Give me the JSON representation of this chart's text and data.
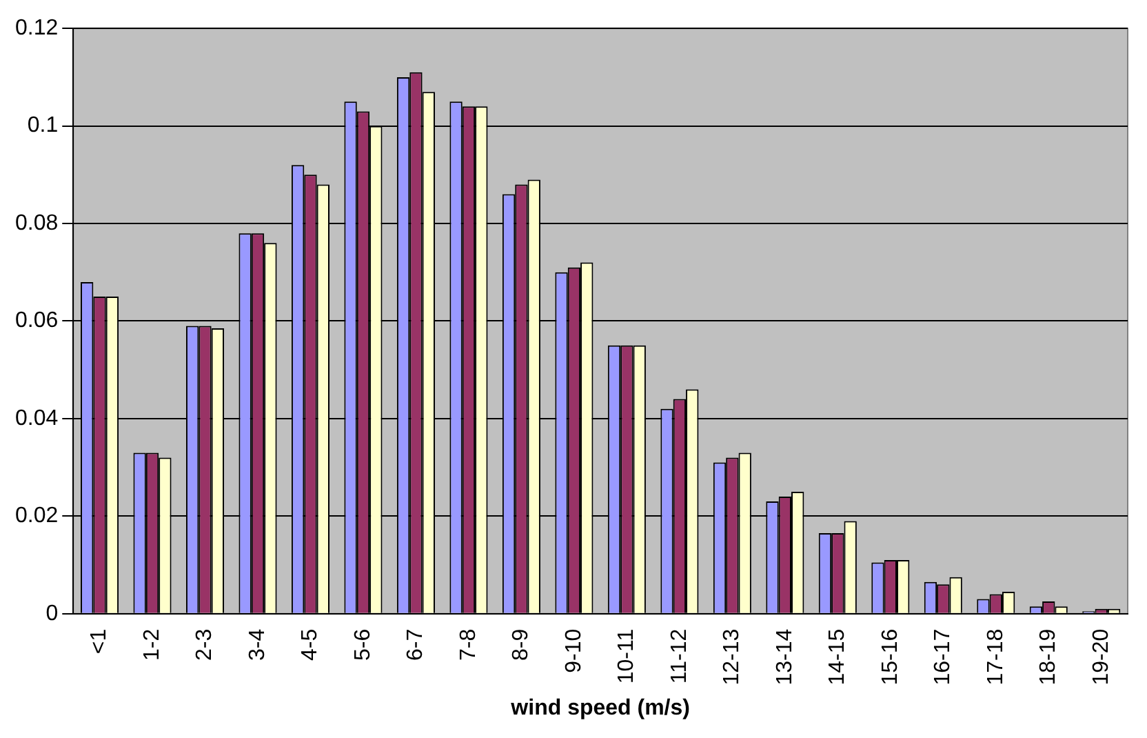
{
  "chart_data": {
    "type": "bar",
    "xlabel": "wind speed (m/s)",
    "categories": [
      "<1",
      "1-2",
      "2-3",
      "3-4",
      "4-5",
      "5-6",
      "6-7",
      "7-8",
      "8-9",
      "9-10",
      "10-11",
      "11-12",
      "12-13",
      "13-14",
      "14-15",
      "15-16",
      "16-17",
      "17-18",
      "18-19",
      "19-20"
    ],
    "series": [
      {
        "color": "#9999ff",
        "values": [
          0.068,
          0.033,
          0.059,
          0.078,
          0.092,
          0.105,
          0.11,
          0.105,
          0.086,
          0.07,
          0.055,
          0.042,
          0.031,
          0.023,
          0.0165,
          0.0105,
          0.0065,
          0.003,
          0.0015,
          0.0005
        ]
      },
      {
        "color": "#993366",
        "values": [
          0.065,
          0.033,
          0.059,
          0.078,
          0.09,
          0.103,
          0.111,
          0.104,
          0.088,
          0.071,
          0.055,
          0.044,
          0.032,
          0.024,
          0.0165,
          0.011,
          0.006,
          0.004,
          0.0025,
          0.001
        ]
      },
      {
        "color": "#ffffcc",
        "values": [
          0.065,
          0.032,
          0.0585,
          0.076,
          0.088,
          0.1,
          0.107,
          0.104,
          0.089,
          0.072,
          0.055,
          0.046,
          0.033,
          0.025,
          0.019,
          0.011,
          0.0075,
          0.0045,
          0.0015,
          0.001
        ]
      }
    ],
    "ylim": [
      0,
      0.12
    ],
    "yticks": [
      0,
      0.02,
      0.04,
      0.06,
      0.08,
      0.1,
      0.12
    ],
    "grid": "y",
    "legend": false
  }
}
